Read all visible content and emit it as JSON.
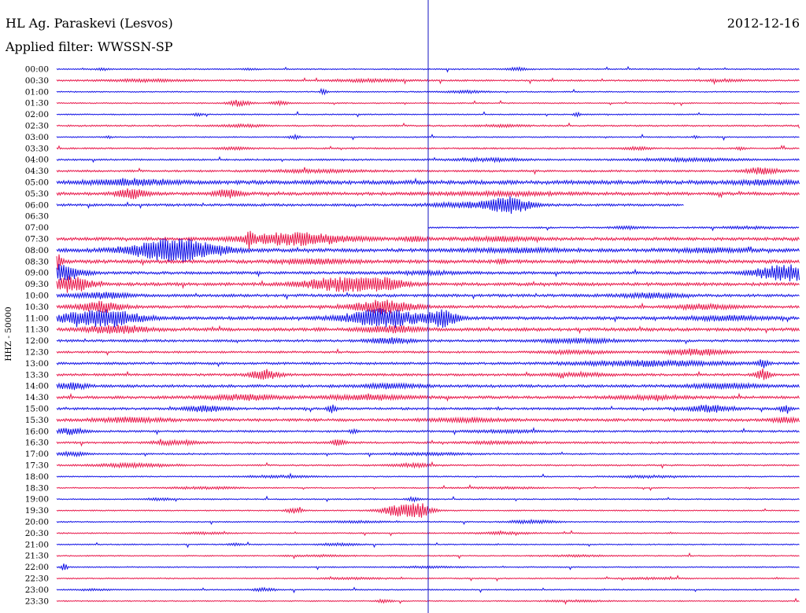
{
  "header": {
    "station": "HL Ag. Paraskevi (Lesvos)",
    "date": "2012-12-16",
    "filter": "Applied filter: WWSSN-SP"
  },
  "chart_data": {
    "type": "line",
    "title": "HL Ag. Paraskevi (Lesvos)",
    "subtitle": "Applied filter: WWSSN-SP",
    "date": "2012-12-16",
    "ylabel": "HHZ - 50000",
    "colors": {
      "even": "#1010e6",
      "odd": "#e8174a",
      "marker": "#1010c0"
    },
    "marker_fraction": 0.5,
    "rows": [
      {
        "label": "00:00",
        "start": 0,
        "end": 1,
        "level": 0.3,
        "events": [
          [
            0.06,
            0.4,
            0.01
          ],
          [
            0.62,
            0.6,
            0.015
          ],
          [
            0.26,
            0.3,
            0.01
          ]
        ]
      },
      {
        "label": "00:30",
        "start": 0,
        "end": 1,
        "level": 0.4,
        "events": [
          [
            0.12,
            0.4,
            0.06
          ],
          [
            0.42,
            0.5,
            0.05
          ],
          [
            0.9,
            0.4,
            0.03
          ]
        ]
      },
      {
        "label": "01:00",
        "start": 0,
        "end": 1,
        "level": 0.3,
        "events": [
          [
            0.36,
            1.0,
            0.004
          ],
          [
            0.55,
            0.4,
            0.03
          ]
        ]
      },
      {
        "label": "01:30",
        "start": 0,
        "end": 1,
        "level": 0.3,
        "events": [
          [
            0.245,
            1.2,
            0.015
          ],
          [
            0.3,
            0.7,
            0.012
          ]
        ]
      },
      {
        "label": "02:00",
        "start": 0,
        "end": 1,
        "level": 0.3,
        "events": [
          [
            0.19,
            0.5,
            0.008
          ],
          [
            0.7,
            1.0,
            0.004
          ]
        ]
      },
      {
        "label": "02:30",
        "start": 0,
        "end": 1,
        "level": 0.4,
        "events": [
          [
            0.25,
            0.5,
            0.03
          ],
          [
            0.6,
            0.4,
            0.03
          ]
        ]
      },
      {
        "label": "03:00",
        "start": 0,
        "end": 1,
        "level": 0.3,
        "events": [
          [
            0.07,
            0.5,
            0.004
          ],
          [
            0.32,
            0.7,
            0.008
          ],
          [
            0.86,
            0.5,
            0.004
          ]
        ]
      },
      {
        "label": "03:30",
        "start": 0,
        "end": 1,
        "level": 0.4,
        "events": [
          [
            0.24,
            0.5,
            0.02
          ],
          [
            0.78,
            0.5,
            0.02
          ],
          [
            0.92,
            0.5,
            0.006
          ]
        ]
      },
      {
        "label": "04:00",
        "start": 0,
        "end": 1,
        "level": 0.4,
        "events": [
          [
            0.58,
            0.6,
            0.05
          ],
          [
            0.85,
            0.5,
            0.08
          ]
        ]
      },
      {
        "label": "04:30",
        "start": 0,
        "end": 1,
        "level": 0.5,
        "events": [
          [
            0.35,
            0.5,
            0.06
          ],
          [
            0.95,
            1.2,
            0.025
          ]
        ]
      },
      {
        "label": "05:00",
        "start": 0,
        "end": 1,
        "level": 1.0,
        "events": [
          [
            0.1,
            1.0,
            0.05
          ],
          [
            0.95,
            0.6,
            0.04
          ]
        ]
      },
      {
        "label": "05:30",
        "start": 0,
        "end": 1,
        "level": 0.8,
        "events": [
          [
            0.1,
            1.8,
            0.02
          ],
          [
            0.23,
            1.5,
            0.018
          ],
          [
            0.6,
            0.5,
            0.08
          ]
        ]
      },
      {
        "label": "06:00",
        "start": 0,
        "end": 0.845,
        "level": 0.6,
        "events": [
          [
            0.61,
            3.0,
            0.03
          ],
          [
            0.55,
            0.8,
            0.05
          ]
        ]
      },
      {
        "label": "06:30",
        "start": 0,
        "end": 0,
        "level": 0.0,
        "events": []
      },
      {
        "label": "07:00",
        "start": 0.5,
        "end": 1,
        "level": 0.4,
        "events": [
          [
            0.77,
            0.5,
            0.02
          ],
          [
            0.93,
            0.4,
            0.04
          ]
        ]
      },
      {
        "label": "07:30",
        "start": 0,
        "end": 1,
        "level": 0.8,
        "events": [
          [
            0.32,
            2.5,
            0.07
          ],
          [
            0.26,
            3.0,
            0.004
          ],
          [
            0.48,
            0.8,
            0.015
          ],
          [
            0.6,
            0.6,
            0.05
          ]
        ]
      },
      {
        "label": "08:00",
        "start": 0,
        "end": 1,
        "level": 0.9,
        "events": [
          [
            0.16,
            4.5,
            0.06
          ],
          [
            0.62,
            0.6,
            0.06
          ],
          [
            0.88,
            0.6,
            0.05
          ]
        ]
      },
      {
        "label": "08:30",
        "start": 0,
        "end": 1,
        "level": 0.9,
        "events": [
          [
            0.0,
            3.0,
            0.008
          ],
          [
            0.6,
            1.0,
            0.006
          ],
          [
            0.35,
            0.7,
            0.05
          ]
        ]
      },
      {
        "label": "09:00",
        "start": 0,
        "end": 1,
        "level": 0.7,
        "events": [
          [
            0.005,
            3.0,
            0.03
          ],
          [
            0.98,
            3.0,
            0.04
          ],
          [
            0.5,
            0.5,
            0.05
          ]
        ]
      },
      {
        "label": "09:30",
        "start": 0,
        "end": 1,
        "level": 0.8,
        "events": [
          [
            0.02,
            3.0,
            0.025
          ],
          [
            0.38,
            2.5,
            0.05
          ],
          [
            0.44,
            2.0,
            0.03
          ]
        ]
      },
      {
        "label": "10:00",
        "start": 0,
        "end": 1,
        "level": 0.7,
        "events": [
          [
            0.06,
            1.0,
            0.04
          ],
          [
            0.8,
            0.8,
            0.04
          ]
        ]
      },
      {
        "label": "10:30",
        "start": 0,
        "end": 1,
        "level": 0.7,
        "events": [
          [
            0.06,
            2.0,
            0.03
          ],
          [
            0.44,
            2.5,
            0.04
          ],
          [
            0.87,
            0.8,
            0.04
          ]
        ]
      },
      {
        "label": "11:00",
        "start": 0,
        "end": 1,
        "level": 0.8,
        "events": [
          [
            0.06,
            3.5,
            0.05
          ],
          [
            0.44,
            3.5,
            0.05
          ],
          [
            0.52,
            3.0,
            0.02
          ],
          [
            0.9,
            0.8,
            0.05
          ]
        ]
      },
      {
        "label": "11:30",
        "start": 0,
        "end": 1,
        "level": 0.8,
        "events": [
          [
            0.08,
            1.5,
            0.04
          ],
          [
            0.45,
            1.2,
            0.04
          ]
        ]
      },
      {
        "label": "12:00",
        "start": 0,
        "end": 1,
        "level": 0.6,
        "events": [
          [
            0.45,
            1.0,
            0.03
          ],
          [
            0.7,
            0.8,
            0.05
          ]
        ]
      },
      {
        "label": "12:30",
        "start": 0,
        "end": 1,
        "level": 0.5,
        "events": [
          [
            0.86,
            1.2,
            0.04
          ],
          [
            0.7,
            0.6,
            0.05
          ]
        ]
      },
      {
        "label": "13:00",
        "start": 0,
        "end": 1,
        "level": 0.6,
        "events": [
          [
            0.8,
            1.0,
            0.1
          ],
          [
            0.95,
            1.5,
            0.008
          ]
        ]
      },
      {
        "label": "13:30",
        "start": 0,
        "end": 1,
        "level": 0.6,
        "events": [
          [
            0.28,
            1.8,
            0.02
          ],
          [
            0.95,
            2.0,
            0.01
          ],
          [
            0.7,
            0.5,
            0.05
          ]
        ]
      },
      {
        "label": "14:00",
        "start": 0,
        "end": 1,
        "level": 0.7,
        "events": [
          [
            0.02,
            1.2,
            0.02
          ],
          [
            0.45,
            0.8,
            0.04
          ],
          [
            0.9,
            0.8,
            0.05
          ]
        ]
      },
      {
        "label": "14:30",
        "start": 0,
        "end": 1,
        "level": 0.7,
        "events": [
          [
            0.25,
            1.0,
            0.05
          ],
          [
            0.42,
            0.8,
            0.06
          ],
          [
            0.8,
            0.6,
            0.05
          ]
        ]
      },
      {
        "label": "15:00",
        "start": 0,
        "end": 1,
        "level": 0.6,
        "events": [
          [
            0.2,
            1.0,
            0.03
          ],
          [
            0.37,
            1.5,
            0.006
          ],
          [
            0.88,
            1.2,
            0.03
          ],
          [
            0.98,
            1.2,
            0.008
          ]
        ]
      },
      {
        "label": "15:30",
        "start": 0,
        "end": 1,
        "level": 0.7,
        "events": [
          [
            0.1,
            0.8,
            0.05
          ],
          [
            0.55,
            0.6,
            0.05
          ],
          [
            0.98,
            0.8,
            0.02
          ]
        ]
      },
      {
        "label": "16:00",
        "start": 0,
        "end": 1,
        "level": 0.5,
        "events": [
          [
            0.02,
            1.2,
            0.02
          ],
          [
            0.4,
            1.0,
            0.006
          ],
          [
            0.6,
            0.4,
            0.05
          ]
        ]
      },
      {
        "label": "16:30",
        "start": 0,
        "end": 1,
        "level": 0.5,
        "events": [
          [
            0.16,
            0.8,
            0.03
          ],
          [
            0.38,
            1.2,
            0.01
          ],
          [
            0.6,
            0.4,
            0.05
          ]
        ]
      },
      {
        "label": "17:00",
        "start": 0,
        "end": 1,
        "level": 0.4,
        "events": [
          [
            0.02,
            0.8,
            0.02
          ],
          [
            0.5,
            0.4,
            0.05
          ]
        ]
      },
      {
        "label": "17:30",
        "start": 0,
        "end": 1,
        "level": 0.4,
        "events": [
          [
            0.1,
            0.7,
            0.05
          ],
          [
            0.48,
            0.6,
            0.03
          ]
        ]
      },
      {
        "label": "18:00",
        "start": 0,
        "end": 1,
        "level": 0.3,
        "events": [
          [
            0.3,
            0.4,
            0.05
          ],
          [
            0.8,
            0.4,
            0.05
          ]
        ]
      },
      {
        "label": "18:30",
        "start": 0,
        "end": 1,
        "level": 0.3,
        "events": [
          [
            0.2,
            0.4,
            0.05
          ],
          [
            0.6,
            0.3,
            0.05
          ]
        ]
      },
      {
        "label": "19:00",
        "start": 0,
        "end": 1,
        "level": 0.3,
        "events": [
          [
            0.48,
            0.8,
            0.008
          ],
          [
            0.14,
            0.4,
            0.02
          ]
        ]
      },
      {
        "label": "19:30",
        "start": 0,
        "end": 1,
        "level": 0.3,
        "events": [
          [
            0.32,
            1.0,
            0.012
          ],
          [
            0.47,
            2.5,
            0.03
          ],
          [
            0.49,
            1.5,
            0.01
          ]
        ]
      },
      {
        "label": "20:00",
        "start": 0,
        "end": 1,
        "level": 0.3,
        "events": [
          [
            0.64,
            0.7,
            0.03
          ],
          [
            0.4,
            0.3,
            0.05
          ]
        ]
      },
      {
        "label": "20:30",
        "start": 0,
        "end": 1,
        "level": 0.3,
        "events": [
          [
            0.2,
            0.4,
            0.03
          ],
          [
            0.6,
            0.4,
            0.04
          ]
        ]
      },
      {
        "label": "21:00",
        "start": 0,
        "end": 1,
        "level": 0.3,
        "events": [
          [
            0.24,
            0.4,
            0.01
          ],
          [
            0.38,
            0.4,
            0.03
          ]
        ]
      },
      {
        "label": "21:30",
        "start": 0,
        "end": 1,
        "level": 0.3,
        "events": [
          [
            0.35,
            0.3,
            0.04
          ],
          [
            0.7,
            0.3,
            0.04
          ]
        ]
      },
      {
        "label": "22:00",
        "start": 0,
        "end": 1,
        "level": 0.3,
        "events": [
          [
            0.01,
            1.5,
            0.004
          ],
          [
            0.5,
            0.3,
            0.04
          ]
        ]
      },
      {
        "label": "22:30",
        "start": 0,
        "end": 1,
        "level": 0.3,
        "events": [
          [
            0.4,
            0.3,
            0.05
          ],
          [
            0.8,
            0.3,
            0.04
          ]
        ]
      },
      {
        "label": "23:00",
        "start": 0,
        "end": 1,
        "level": 0.3,
        "events": [
          [
            0.28,
            0.6,
            0.015
          ],
          [
            0.05,
            0.3,
            0.02
          ]
        ]
      },
      {
        "label": "23:30",
        "start": 0,
        "end": 1,
        "level": 0.3,
        "events": [
          [
            0.44,
            0.6,
            0.01
          ],
          [
            0.7,
            0.3,
            0.04
          ]
        ]
      }
    ]
  }
}
